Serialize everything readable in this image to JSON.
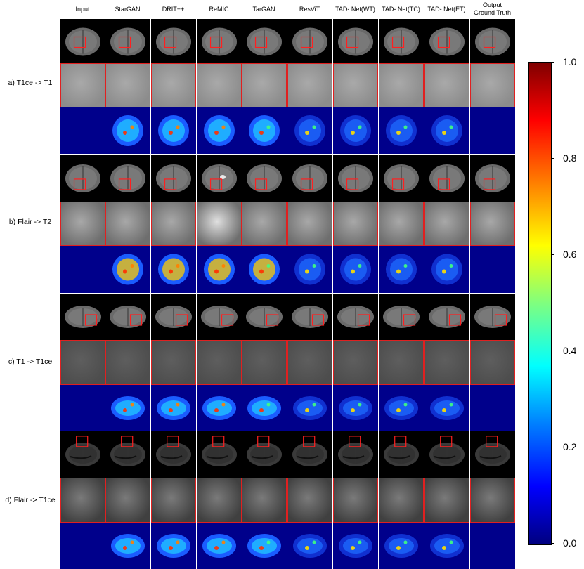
{
  "columns": [
    "Input",
    "StarGAN",
    "DRIT++",
    "ReMIC",
    "TarGAN",
    "ResViT",
    "TAD- Net(WT)",
    "TAD- Net(TC)",
    "TAD- Net(ET)",
    "Output\nGround Truth"
  ],
  "tasks": [
    {
      "label": "a) T1ce -> T1"
    },
    {
      "label": "b) Flair -> T2"
    },
    {
      "label": "c) T1 -> T1ce"
    },
    {
      "label": "d) Flair -> T1ce"
    }
  ],
  "colorbar": {
    "ticks": [
      "1.0",
      "0.8",
      "0.6",
      "0.4",
      "0.2",
      "0.0"
    ],
    "colormap": "jet",
    "colors": [
      "#00007f",
      "#0000ff",
      "#007fff",
      "#00ffff",
      "#7fff7f",
      "#ffff00",
      "#ff7f00",
      "#ff0000",
      "#7f0000"
    ]
  }
}
